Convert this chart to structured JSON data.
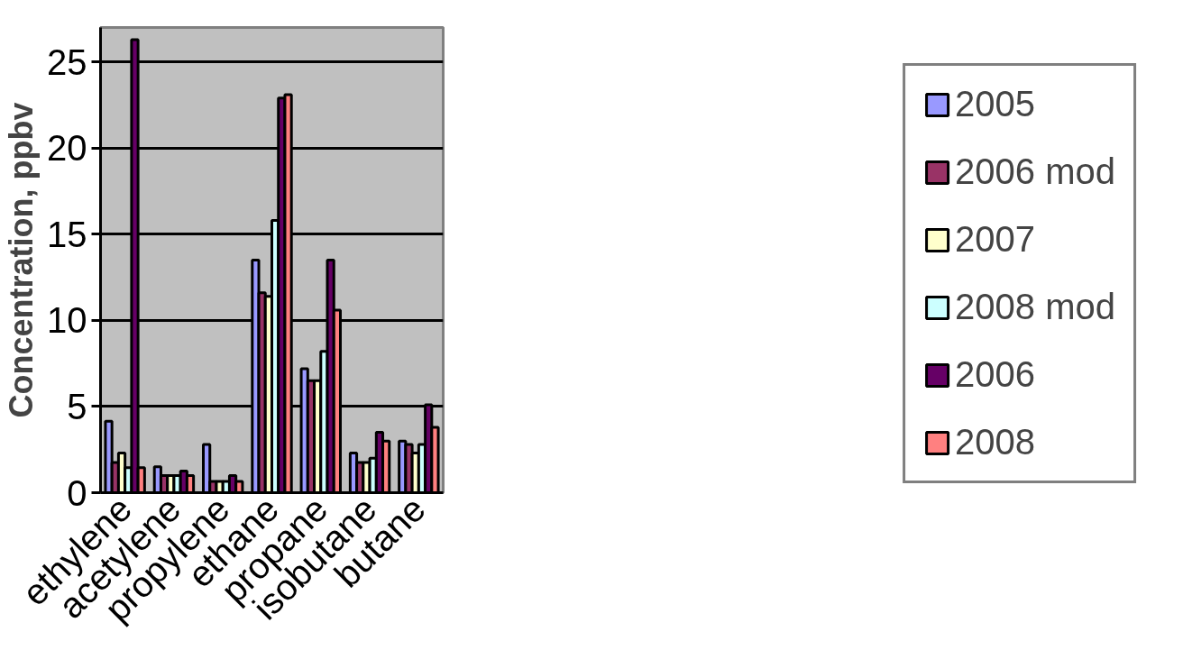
{
  "chart_data": {
    "type": "bar",
    "ylabel": "Concentration, ppbv",
    "categories": [
      "ethylene",
      "acetylene",
      "propylene",
      "ethane",
      "propane",
      "isobutane",
      "butane"
    ],
    "series": [
      {
        "name": "2005",
        "color": "#9999ff",
        "values": [
          4.15,
          1.5,
          2.8,
          13.5,
          7.2,
          2.3,
          3.0
        ]
      },
      {
        "name": "2006 mod",
        "color": "#993366",
        "values": [
          1.75,
          1.0,
          0.65,
          11.6,
          6.5,
          1.75,
          2.8
        ]
      },
      {
        "name": "2007",
        "color": "#ffffcc",
        "values": [
          2.3,
          1.0,
          0.65,
          11.4,
          6.5,
          1.75,
          2.3
        ]
      },
      {
        "name": "2008 mod",
        "color": "#ccffff",
        "values": [
          1.45,
          1.0,
          0.65,
          15.8,
          8.2,
          2.0,
          2.8
        ]
      },
      {
        "name": "2006",
        "color": "#660066",
        "values": [
          26.3,
          1.25,
          1.0,
          22.9,
          13.5,
          3.5,
          5.1
        ]
      },
      {
        "name": "2008",
        "color": "#ff8080",
        "values": [
          1.45,
          1.0,
          0.65,
          23.1,
          10.6,
          3.0,
          3.8
        ]
      }
    ],
    "ylim": [
      0,
      27
    ],
    "yticks": [
      0,
      5,
      10,
      15,
      20,
      25
    ],
    "grid": "y",
    "legend": "right"
  }
}
